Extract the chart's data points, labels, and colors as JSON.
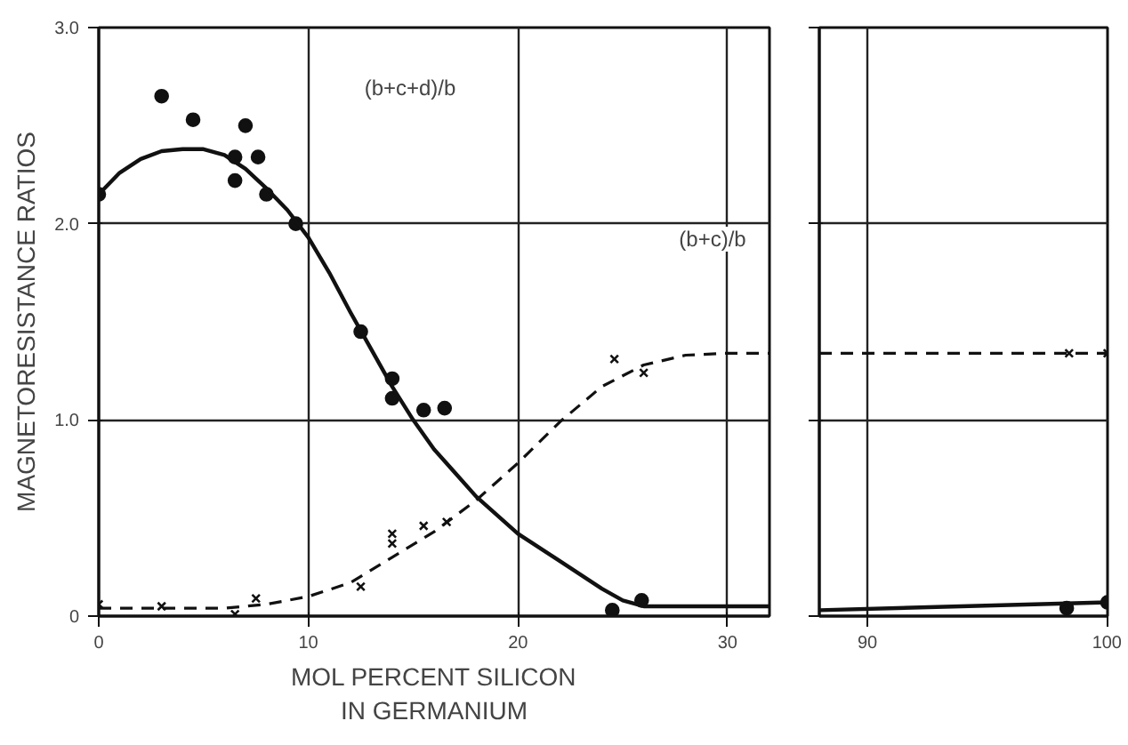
{
  "chart_data": [
    {
      "type": "line",
      "ylabel": "MAGNETORESISTANCE RATIOS",
      "xlabel": "MOL PERCENT SILICON\nIN GERMANIUM",
      "xlim": [
        0,
        32
      ],
      "ylim": [
        0,
        3.0
      ],
      "xticks": [
        0,
        10,
        20,
        30
      ],
      "yticks": [
        0,
        {
          "value": 1.0,
          "label": "1.0"
        },
        {
          "value": 2.0,
          "label": "2.0"
        },
        {
          "value": 3.0,
          "label": "3.0"
        }
      ],
      "grid": true,
      "annotations": [
        "(b+c+d)/b",
        "(b+c)/b"
      ],
      "series": [
        {
          "type": "scatter",
          "color": "#111111",
          "marker": "circle",
          "x": [
            0,
            3.0,
            4.5,
            6.5,
            6.5,
            7.0,
            7.6,
            8.0,
            9.4,
            12.5,
            14.0,
            14.0,
            15.5,
            16.5,
            24.5,
            25.9
          ],
          "values": [
            2.15,
            2.65,
            2.53,
            2.34,
            2.22,
            2.5,
            2.34,
            2.15,
            2.0,
            1.45,
            1.21,
            1.11,
            1.05,
            1.06,
            0.03,
            0.08
          ]
        },
        {
          "color": "#111111",
          "marker": "none",
          "line_style": "solid",
          "x": [
            0,
            1,
            2,
            3,
            4,
            5,
            6,
            7,
            8,
            9,
            10,
            11,
            12,
            13,
            14,
            15,
            16,
            18,
            20,
            22,
            24,
            25,
            26,
            28,
            32
          ],
          "values": [
            2.15,
            2.26,
            2.33,
            2.37,
            2.38,
            2.38,
            2.35,
            2.28,
            2.18,
            2.07,
            1.93,
            1.75,
            1.55,
            1.36,
            1.17,
            1.0,
            0.85,
            0.61,
            0.42,
            0.28,
            0.14,
            0.08,
            0.05,
            0.05,
            0.05
          ]
        },
        {
          "type": "scatter",
          "color": "#111111",
          "marker": "cross",
          "x": [
            0,
            3.0,
            6.5,
            7.5,
            12.5,
            14.0,
            14.0,
            15.5,
            16.6,
            24.6,
            26.0
          ],
          "values": [
            0.06,
            0.05,
            0.01,
            0.09,
            0.15,
            0.42,
            0.37,
            0.46,
            0.48,
            1.31,
            1.24
          ]
        },
        {
          "color": "#111111",
          "marker": "none",
          "line_style": "dashed",
          "x": [
            0,
            6,
            8,
            10,
            12,
            14,
            16,
            18,
            20,
            22,
            24,
            26,
            28,
            30,
            32
          ],
          "values": [
            0.04,
            0.04,
            0.06,
            0.1,
            0.17,
            0.3,
            0.43,
            0.59,
            0.78,
            0.99,
            1.17,
            1.28,
            1.33,
            1.34,
            1.34
          ]
        }
      ]
    },
    {
      "type": "line",
      "xlim": [
        88,
        100
      ],
      "ylim": [
        0,
        3.0
      ],
      "xticks": [
        90,
        100
      ],
      "yticks": [
        {
          "value": 0,
          "label": null
        },
        {
          "value": 1.0,
          "label": null
        },
        {
          "value": 2.0,
          "label": null
        },
        {
          "value": 3.0,
          "label": null
        }
      ],
      "tick_labels": "x",
      "grid": true,
      "series": [
        {
          "type": "scatter",
          "color": "#111111",
          "marker": "circle",
          "x": [
            98.3,
            100
          ],
          "values": [
            0.04,
            0.07
          ]
        },
        {
          "color": "#111111",
          "marker": "none",
          "line_style": "solid",
          "x": [
            88,
            100
          ],
          "values": [
            0.03,
            0.07
          ]
        },
        {
          "type": "scatter",
          "color": "#111111",
          "marker": "cross",
          "x": [
            98.4,
            100
          ],
          "values": [
            1.34,
            1.34
          ]
        },
        {
          "color": "#111111",
          "marker": "none",
          "line_style": "dashed",
          "x": [
            88,
            100
          ],
          "values": [
            1.34,
            1.34
          ]
        }
      ]
    }
  ]
}
